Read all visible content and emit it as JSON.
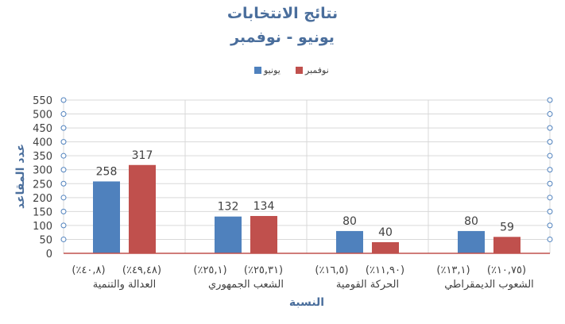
{
  "chart_data": {
    "type": "bar",
    "title": "نتائج الانتخابات",
    "subtitle": "يونيو - نوفمبر",
    "xlabel": "النسبة",
    "ylabel": "عدد المقاعد",
    "ylim": [
      0,
      550
    ],
    "ytick_step": 50,
    "grid": true,
    "legend_position": "top-center",
    "categories": [
      "العدالة والتنمية",
      "الشعب الجمهوري",
      "الحركة القومية",
      "الشعوب الديمقراطي"
    ],
    "percent_labels": [
      [
        "(٪٤٠,٨)",
        "(٪٤٩,٤٨)"
      ],
      [
        "(٪٢٥,١)",
        "(٪٢٥,٣١)"
      ],
      [
        "(٪١٦,٥)",
        "(٪١١,٩٠)"
      ],
      [
        "(٪١٣,١)",
        "(٪١٠,٧٥)"
      ]
    ],
    "series": [
      {
        "name": "يونيو",
        "color": "#4f81bd",
        "values": [
          258,
          132,
          80,
          80
        ]
      },
      {
        "name": "نوفمبر",
        "color": "#c0504d",
        "values": [
          317,
          134,
          40,
          59
        ]
      }
    ]
  }
}
